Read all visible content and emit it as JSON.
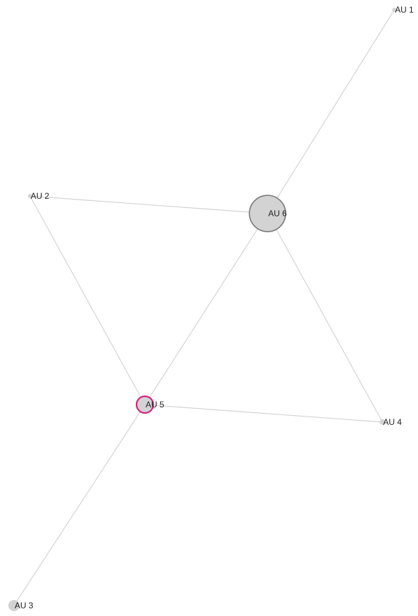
{
  "nodes": [
    {
      "label": "AU 1"
    },
    {
      "label": "AU 2"
    },
    {
      "label": "AU 3"
    },
    {
      "label": "AU 4"
    },
    {
      "label": "AU 5"
    },
    {
      "label": "AU 6"
    }
  ]
}
